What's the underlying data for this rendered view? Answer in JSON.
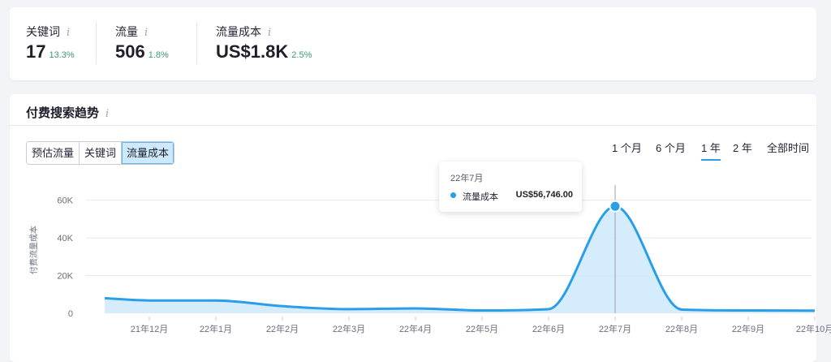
{
  "metrics": [
    {
      "label": "关键词",
      "value": "17",
      "change": "13.3%"
    },
    {
      "label": "流量",
      "value": "506",
      "change": "1.8%"
    },
    {
      "label": "流量成本",
      "value": "US$1.8K",
      "change": "2.5%"
    }
  ],
  "info_glyph": "i",
  "trend": {
    "title": "付费搜索趋势",
    "tabs": [
      {
        "label": "预估流量",
        "active": false
      },
      {
        "label": "关键词",
        "active": false
      },
      {
        "label": "流量成本",
        "active": true
      }
    ],
    "ranges": [
      {
        "label": "1 个月",
        "active": false
      },
      {
        "label": "6 个月",
        "active": false
      },
      {
        "label": "1 年",
        "active": true
      },
      {
        "label": "2 年",
        "active": false
      },
      {
        "label": "全部时间",
        "active": false
      }
    ]
  },
  "tooltip": {
    "date": "22年7月",
    "series": "流量成本",
    "value": "US$56,746.00"
  },
  "colors": {
    "accent": "#2a9ee8",
    "fill": "#cde9fb",
    "positive": "#3c9a6e"
  },
  "chart_data": {
    "type": "area",
    "ylabel": "付费流量成本",
    "ylim": [
      0,
      65000
    ],
    "yticks": [
      0,
      20000,
      40000,
      60000
    ],
    "ytick_labels": [
      "0",
      "20K",
      "40K",
      "60K"
    ],
    "xticks": [
      "21年12月",
      "22年1月",
      "22年2月",
      "22年3月",
      "22年4月",
      "22年5月",
      "22年6月",
      "22年7月",
      "22年8月",
      "22年9月",
      "22年10月"
    ],
    "xlim": [
      -0.67,
      10.0
    ],
    "series": [
      {
        "name": "流量成本",
        "x": [
          -0.67,
          0,
          1,
          2,
          3,
          4,
          5,
          6,
          7,
          8,
          9,
          10
        ],
        "values": [
          8000,
          6800,
          6800,
          3800,
          2200,
          2600,
          1500,
          2200,
          56746,
          2000,
          1500,
          1400
        ]
      }
    ],
    "highlight": {
      "index": 8
    },
    "grid": true
  }
}
